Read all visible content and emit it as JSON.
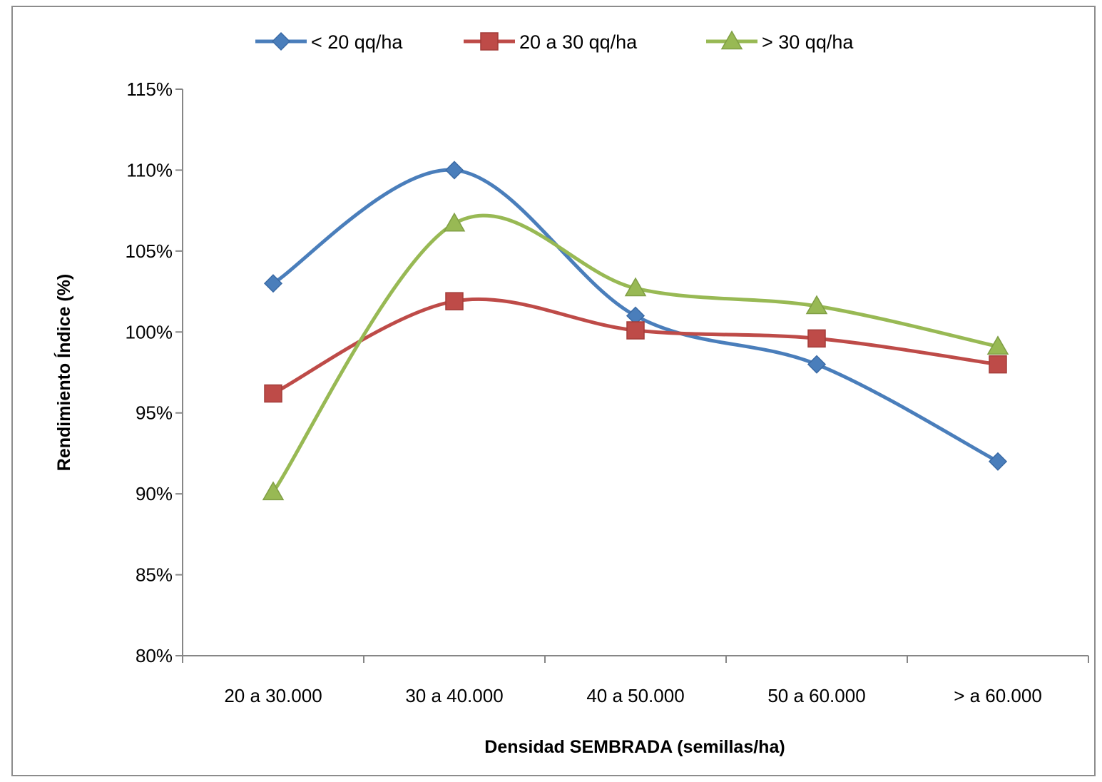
{
  "chart_data": {
    "type": "line",
    "title": "",
    "xlabel": "Densidad SEMBRADA  (semillas/ha)",
    "ylabel": "Rendimiento Índice (%)",
    "categories": [
      "20 a 30.000",
      "30 a 40.000",
      "40 a 50.000",
      "50 a 60.000",
      "> a 60.000"
    ],
    "ylim": [
      80,
      115
    ],
    "yticks": [
      80,
      85,
      90,
      95,
      100,
      105,
      110,
      115
    ],
    "ytick_labels": [
      "80%",
      "85%",
      "90%",
      "95%",
      "100%",
      "105%",
      "110%",
      "115%"
    ],
    "smooth": true,
    "grid": false,
    "legend_position": "top",
    "series": [
      {
        "name": "< 20 qq/ha",
        "color": "#4a7ebb",
        "marker": "diamond",
        "values": [
          103,
          110,
          101,
          98,
          92
        ]
      },
      {
        "name": "20 a 30 qq/ha",
        "color": "#be4b48",
        "marker": "square",
        "values": [
          96.2,
          101.9,
          100.1,
          99.6,
          98
        ]
      },
      {
        "name": "> 30 qq/ha",
        "color": "#98b954",
        "marker": "triangle",
        "values": [
          90.1,
          106.7,
          102.7,
          101.6,
          99.1
        ]
      }
    ]
  }
}
